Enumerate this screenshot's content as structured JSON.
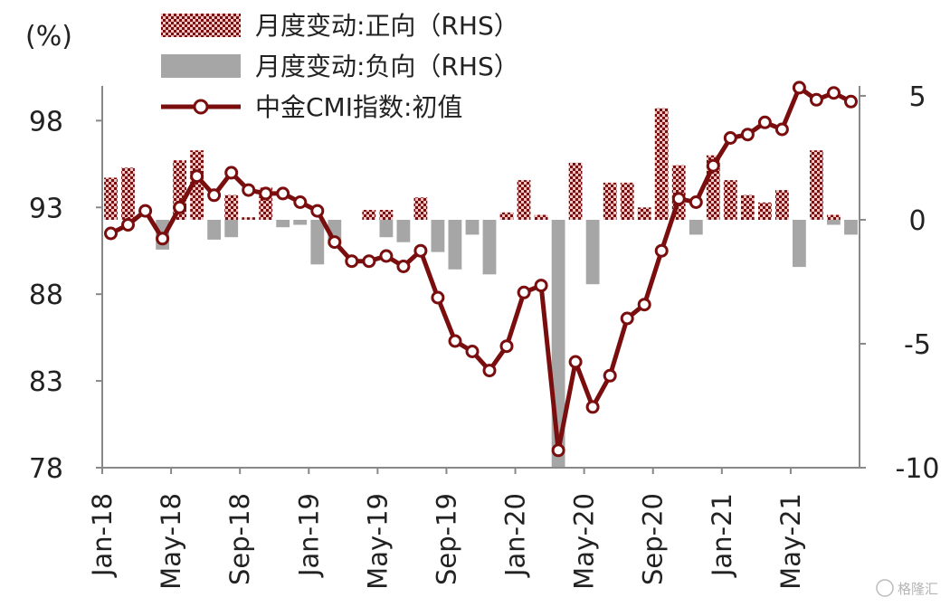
{
  "chart_data": {
    "type": "bar+line",
    "left_unit": "(%)",
    "left_axis": {
      "ylim": [
        78,
        100
      ],
      "ticks": [
        78,
        83,
        88,
        93,
        98
      ]
    },
    "right_axis": {
      "ylim": [
        -10,
        5.4
      ],
      "ticks": [
        -10,
        -5,
        0,
        5
      ]
    },
    "x_tick_labels": [
      "Jan-18",
      "May-18",
      "Sep-18",
      "Jan-19",
      "May-19",
      "Sep-19",
      "Jan-20",
      "May-20",
      "Sep-20",
      "Jan-21",
      "May-21"
    ],
    "x_tick_month_index": [
      0,
      4,
      8,
      12,
      16,
      20,
      24,
      28,
      32,
      36,
      40
    ],
    "months": [
      "Jan-18",
      "Feb-18",
      "Mar-18",
      "Apr-18",
      "May-18",
      "Jun-18",
      "Jul-18",
      "Aug-18",
      "Sep-18",
      "Oct-18",
      "Nov-18",
      "Dec-18",
      "Jan-19",
      "Feb-19",
      "Mar-19",
      "Apr-19",
      "May-19",
      "Jun-19",
      "Jul-19",
      "Aug-19",
      "Sep-19",
      "Oct-19",
      "Nov-19",
      "Dec-19",
      "Jan-20",
      "Feb-20",
      "Mar-20",
      "Apr-20",
      "May-20",
      "Jun-20",
      "Jul-20",
      "Aug-20",
      "Sep-20",
      "Oct-20",
      "Nov-20",
      "Dec-20",
      "Jan-21",
      "Feb-21",
      "Mar-21",
      "Apr-21",
      "May-21",
      "Jun-21",
      "Jul-21",
      "Aug-21"
    ],
    "series": [
      {
        "name": "中金CMI指数:初值",
        "axis": "left",
        "type": "line",
        "color": "#7a0e0e",
        "values": [
          91.5,
          92.0,
          92.8,
          91.2,
          93.0,
          94.8,
          93.7,
          95.0,
          94.0,
          93.8,
          93.8,
          93.3,
          92.8,
          91.0,
          89.9,
          89.9,
          90.2,
          89.6,
          90.5,
          87.8,
          85.3,
          84.7,
          83.6,
          85.0,
          88.1,
          88.5,
          79.0,
          84.1,
          81.5,
          83.3,
          86.6,
          87.4,
          90.5,
          93.5,
          93.3,
          95.4,
          97.0,
          97.2,
          97.9,
          97.5,
          99.9,
          99.2,
          99.6,
          99.1
        ]
      },
      {
        "name": "月度变动:正向（RHS）",
        "axis": "right",
        "type": "bar",
        "color": "#7a0e0e",
        "values": [
          1.7,
          2.1,
          0,
          0,
          2.4,
          2.8,
          0,
          1.0,
          0.1,
          1.3,
          0,
          0,
          0,
          0,
          0,
          0.4,
          0.4,
          0,
          0.9,
          0,
          0,
          0,
          0,
          0.3,
          1.6,
          0.2,
          0,
          2.3,
          0,
          1.5,
          1.5,
          0.5,
          4.5,
          2.2,
          0,
          2.6,
          1.6,
          1.0,
          0.7,
          1.2,
          0,
          2.8,
          0.2,
          0
        ]
      },
      {
        "name": "月度变动:负向（RHS）",
        "axis": "right",
        "type": "bar",
        "color": "#a6a6a6",
        "values": [
          0,
          0,
          0,
          -1.2,
          0,
          0,
          -0.8,
          -0.7,
          0,
          0,
          -0.3,
          -0.2,
          -1.8,
          -1.0,
          0,
          0,
          -0.7,
          -0.9,
          0,
          -1.3,
          -2.0,
          -0.6,
          -2.2,
          0,
          0,
          0,
          -10.0,
          0,
          -2.6,
          0,
          0,
          0,
          0,
          0,
          -0.6,
          0,
          0,
          0,
          0,
          0,
          -1.9,
          0,
          -0.2,
          -0.6
        ]
      }
    ],
    "legend": [
      {
        "label": "月度变动:正向（RHS）",
        "kind": "pattern-bar"
      },
      {
        "label": "月度变动:负向（RHS）",
        "kind": "gray-bar"
      },
      {
        "label": "中金CMI指数:初值",
        "kind": "line-marker"
      }
    ],
    "legend_position": "top-left",
    "grid": false,
    "watermark": "格隆汇"
  }
}
